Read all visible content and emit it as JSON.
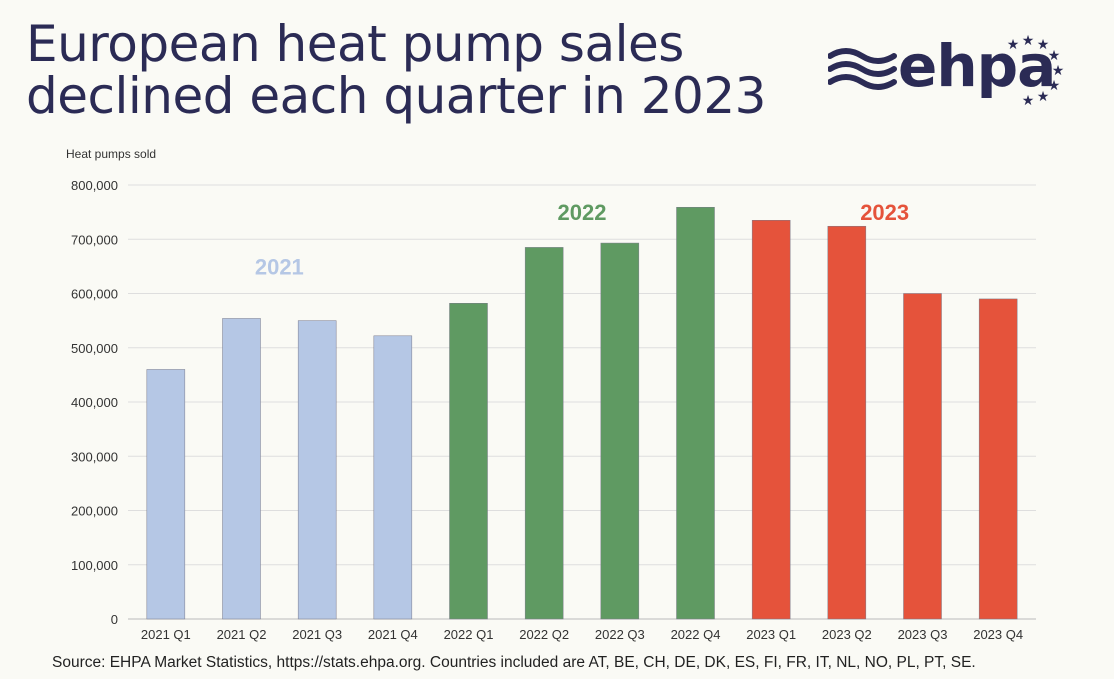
{
  "title": {
    "line1": "European heat pump sales",
    "line2": "declined each quarter in 2023"
  },
  "logo": {
    "text": "ehpa",
    "icon": "eu-stars-icon",
    "wave_icon": "waves-icon"
  },
  "source": "Source: EHPA Market Statistics, https://stats.ehpa.org. Countries included are AT, BE, CH, DE, DK, ES, FI, FR, IT, NL, NO, PL, PT, SE.",
  "colors": {
    "y2021": "#b5c7e5",
    "y2022": "#5f9a62",
    "y2023": "#e5533b",
    "title": "#2b2b55",
    "grid": "#dedede"
  },
  "chart_data": {
    "type": "bar",
    "ylabel": "Heat pumps sold",
    "ylim": [
      0,
      800000
    ],
    "yticks": [
      0,
      100000,
      200000,
      300000,
      400000,
      500000,
      600000,
      700000,
      800000
    ],
    "ytick_labels": [
      "0",
      "100,000",
      "200,000",
      "300,000",
      "400,000",
      "500,000",
      "600,000",
      "700,000",
      "800,000"
    ],
    "grid": true,
    "categories": [
      "2021 Q1",
      "2021 Q2",
      "2021 Q3",
      "2021 Q4",
      "2022 Q1",
      "2022 Q2",
      "2022 Q3",
      "2022 Q4",
      "2023 Q1",
      "2023 Q2",
      "2023 Q3",
      "2023 Q4"
    ],
    "values": [
      460000,
      554000,
      550000,
      522000,
      582000,
      685000,
      693000,
      759000,
      735000,
      724000,
      600000,
      590000
    ],
    "groups": [
      "2021",
      "2021",
      "2021",
      "2021",
      "2022",
      "2022",
      "2022",
      "2022",
      "2023",
      "2023",
      "2023",
      "2023"
    ],
    "annotations": [
      {
        "text": "2021",
        "group": "2021",
        "y": 650000
      },
      {
        "text": "2022",
        "group": "2022",
        "y": 750000
      },
      {
        "text": "2023",
        "group": "2023",
        "y": 750000
      }
    ]
  }
}
